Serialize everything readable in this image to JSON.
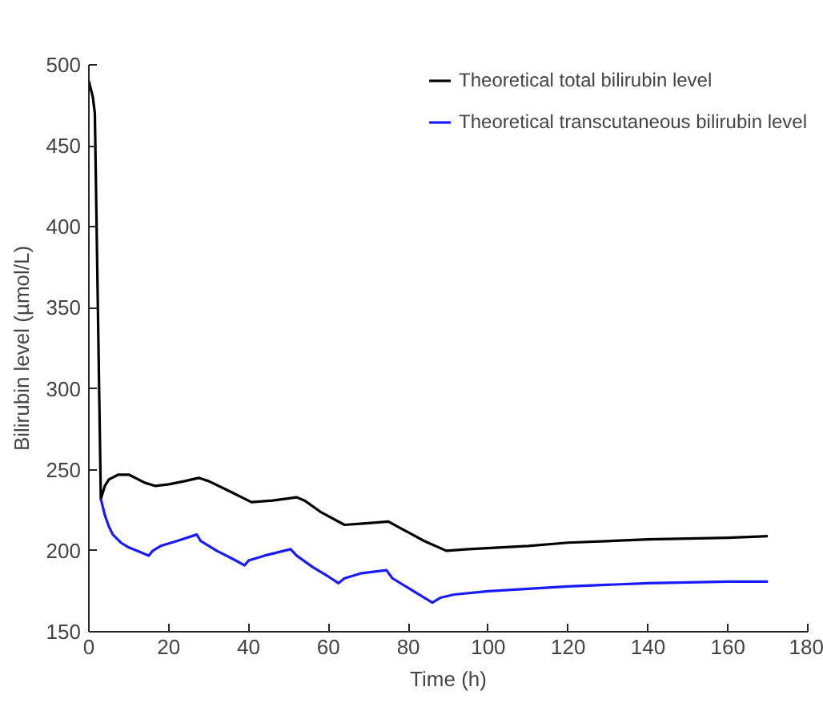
{
  "chart_data": {
    "type": "line",
    "xlabel": "Time (h)",
    "ylabel": "Bilirubin level (µmol/L)",
    "xlim": [
      0,
      180
    ],
    "ylim": [
      150,
      500
    ],
    "xticks": [
      0,
      20,
      40,
      60,
      80,
      100,
      120,
      140,
      160,
      180
    ],
    "yticks": [
      150,
      200,
      250,
      300,
      350,
      400,
      450,
      500
    ],
    "grid": false,
    "legend": "top right",
    "line_style": "solid",
    "series": [
      {
        "name": "Theoretical total bilirubin level",
        "color": "#000000",
        "x": [
          0,
          1,
          1.5,
          3,
          4,
          5,
          7.4,
          10,
          14,
          16.7,
          20,
          24,
          27.5,
          30,
          35,
          40.7,
          46,
          52,
          54,
          58,
          64,
          70,
          75,
          78,
          84,
          89.5,
          95,
          110,
          120,
          140,
          160,
          170
        ],
        "values": [
          490,
          480,
          470,
          232,
          240,
          244,
          247,
          247,
          242,
          240,
          241,
          243,
          245,
          243,
          237,
          230,
          231,
          233,
          231,
          224,
          216,
          217,
          218,
          214,
          206,
          200,
          201,
          203,
          205,
          207,
          208,
          209
        ]
      },
      {
        "name": "Theoretical transcutaneous bilirubin level",
        "color": "#1a1aff",
        "x": [
          3,
          4,
          5,
          6,
          8,
          10,
          12,
          15,
          16,
          18,
          22,
          27,
          28,
          32,
          36,
          39,
          40,
          44,
          50.5,
          52,
          56,
          60,
          62.5,
          64,
          68,
          74.5,
          76,
          80,
          86,
          88,
          91.5,
          100,
          120,
          140,
          160,
          170
        ],
        "values": [
          232,
          222,
          215,
          210,
          205,
          202,
          200,
          197,
          200,
          203,
          206,
          210,
          206,
          200,
          195,
          191,
          194,
          197,
          201,
          197,
          190,
          184,
          180,
          183,
          186,
          188,
          183,
          177,
          168,
          171,
          173,
          175,
          178,
          180,
          181,
          181
        ]
      }
    ]
  }
}
